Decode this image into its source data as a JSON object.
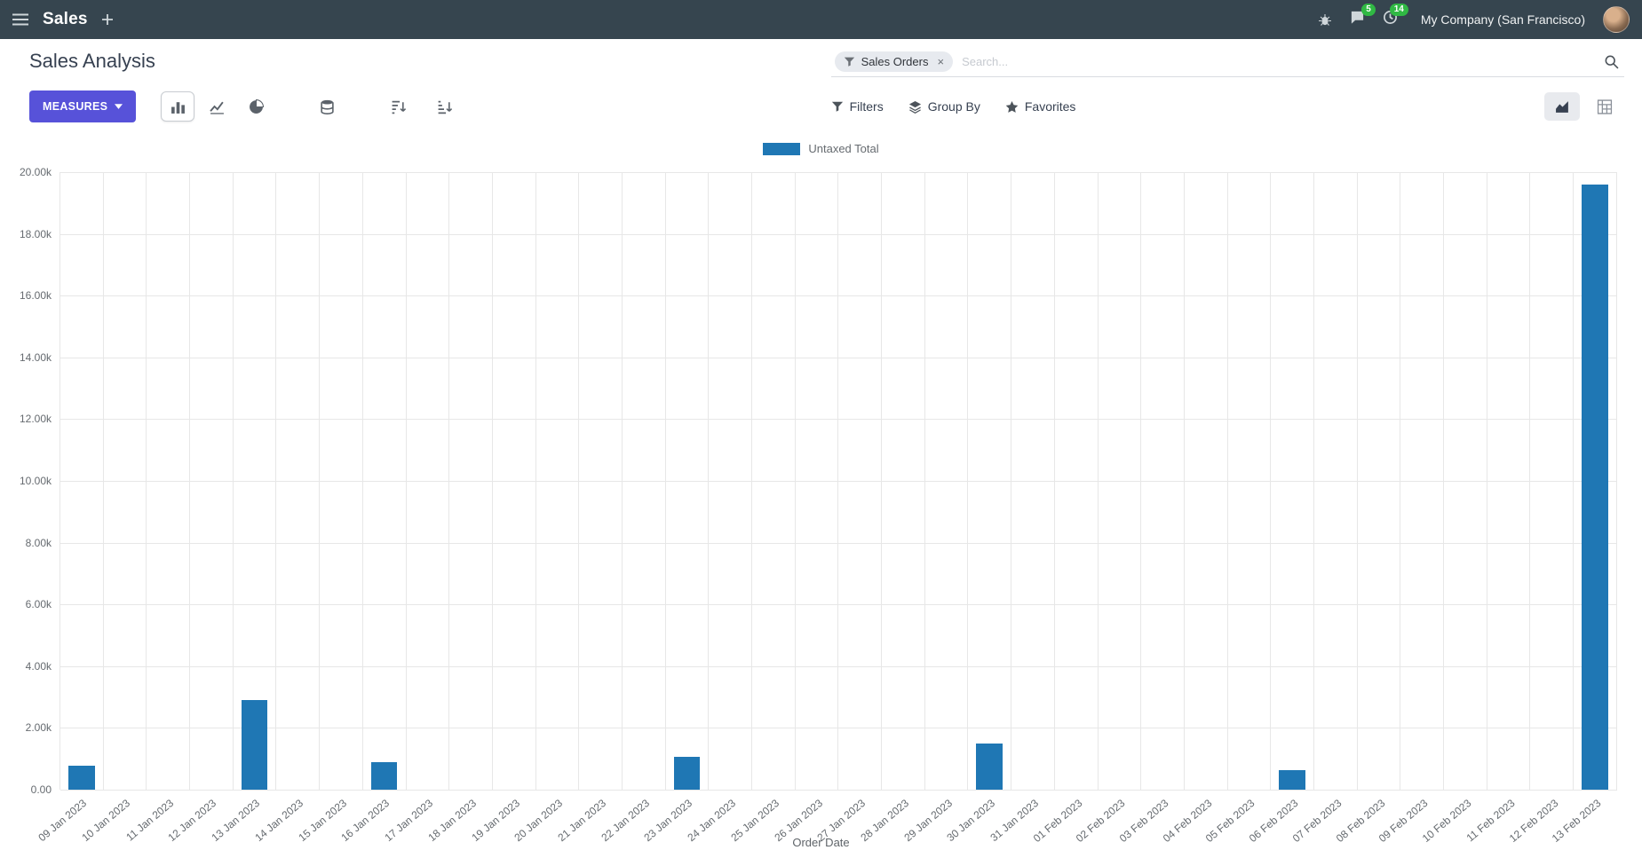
{
  "colors": {
    "navbar_bg": "#36454f",
    "primary_button": "#5752d9",
    "bar_series": "#1f77b4",
    "badge": "#30b944"
  },
  "navbar": {
    "app_name": "Sales",
    "company": "My Company (San Francisco)",
    "messages_badge": "5",
    "activities_badge": "14"
  },
  "control_panel": {
    "title": "Sales Analysis",
    "measures_label": "MEASURES",
    "filters_label": "Filters",
    "group_by_label": "Group By",
    "favorites_label": "Favorites",
    "search": {
      "facet_label": "Sales Orders",
      "placeholder": "Search...",
      "remove_symbol": "×"
    }
  },
  "chart_data": {
    "type": "bar",
    "title": "",
    "legend": [
      "Untaxed Total"
    ],
    "legend_position": "top",
    "grid": true,
    "xlabel": "Order Date",
    "ylabel": "",
    "ylim": [
      0,
      20000
    ],
    "ytick_labels": [
      "0.00",
      "2.00k",
      "4.00k",
      "6.00k",
      "8.00k",
      "10.00k",
      "12.00k",
      "14.00k",
      "16.00k",
      "18.00k",
      "20.00k"
    ],
    "categories": [
      "09 Jan 2023",
      "10 Jan 2023",
      "11 Jan 2023",
      "12 Jan 2023",
      "13 Jan 2023",
      "14 Jan 2023",
      "15 Jan 2023",
      "16 Jan 2023",
      "17 Jan 2023",
      "18 Jan 2023",
      "19 Jan 2023",
      "20 Jan 2023",
      "21 Jan 2023",
      "22 Jan 2023",
      "23 Jan 2023",
      "24 Jan 2023",
      "25 Jan 2023",
      "26 Jan 2023",
      "27 Jan 2023",
      "28 Jan 2023",
      "29 Jan 2023",
      "30 Jan 2023",
      "31 Jan 2023",
      "01 Feb 2023",
      "02 Feb 2023",
      "03 Feb 2023",
      "04 Feb 2023",
      "05 Feb 2023",
      "06 Feb 2023",
      "07 Feb 2023",
      "08 Feb 2023",
      "09 Feb 2023",
      "10 Feb 2023",
      "11 Feb 2023",
      "12 Feb 2023",
      "13 Feb 2023"
    ],
    "values": [
      780,
      0,
      0,
      0,
      2900,
      0,
      0,
      900,
      0,
      0,
      0,
      0,
      0,
      0,
      1050,
      0,
      0,
      0,
      0,
      0,
      0,
      1500,
      0,
      0,
      0,
      0,
      0,
      0,
      620,
      0,
      0,
      0,
      0,
      0,
      0,
      19600
    ]
  }
}
